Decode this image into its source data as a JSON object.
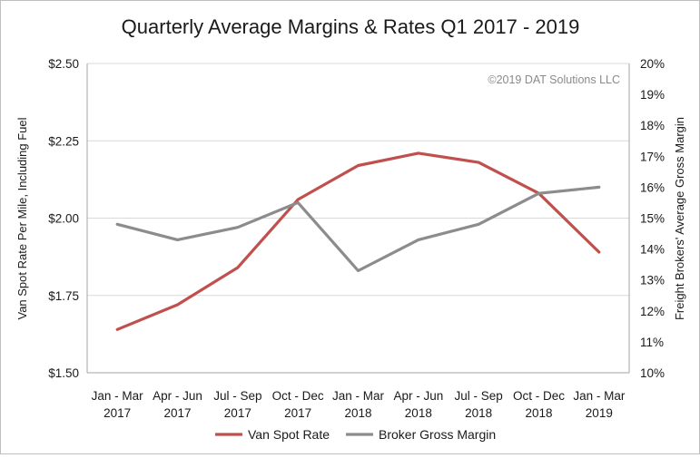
{
  "chart_data": {
    "type": "line",
    "title": "Quarterly Average Margins & Rates Q1 2017 - 2019",
    "credit": "©2019 DAT Solutions LLC",
    "categories": [
      [
        "Jan - Mar",
        "2017"
      ],
      [
        "Apr - Jun",
        "2017"
      ],
      [
        "Jul - Sep",
        "2017"
      ],
      [
        "Oct - Dec",
        "2017"
      ],
      [
        "Jan - Mar",
        "2018"
      ],
      [
        "Apr - Jun",
        "2018"
      ],
      [
        "Jul - Sep",
        "2018"
      ],
      [
        "Oct - Dec",
        "2018"
      ],
      [
        "Jan - Mar",
        "2019"
      ]
    ],
    "y_left": {
      "label": "Van Spot Rate Per Mile, Including Fuel",
      "range": [
        1.5,
        2.5
      ],
      "ticks": [
        "$1.50",
        "$1.75",
        "$2.00",
        "$2.25",
        "$2.50"
      ]
    },
    "y_right": {
      "label": "Freight Brokers' Average Gross Margin",
      "range": [
        10,
        20
      ],
      "ticks": [
        "10%",
        "11%",
        "12%",
        "13%",
        "14%",
        "15%",
        "16%",
        "17%",
        "18%",
        "19%",
        "20%"
      ]
    },
    "grid": true,
    "legend_position": "bottom",
    "series": [
      {
        "name": "Van Spot Rate",
        "axis": "left",
        "color": "#c0504d",
        "values": [
          1.64,
          1.72,
          1.84,
          2.06,
          2.17,
          2.21,
          2.18,
          2.08,
          1.89
        ]
      },
      {
        "name": "Broker Gross Margin",
        "axis": "right",
        "color": "#8c8c8c",
        "values": [
          14.8,
          14.3,
          14.7,
          15.5,
          13.3,
          14.3,
          14.8,
          15.8,
          16.0
        ]
      }
    ]
  }
}
